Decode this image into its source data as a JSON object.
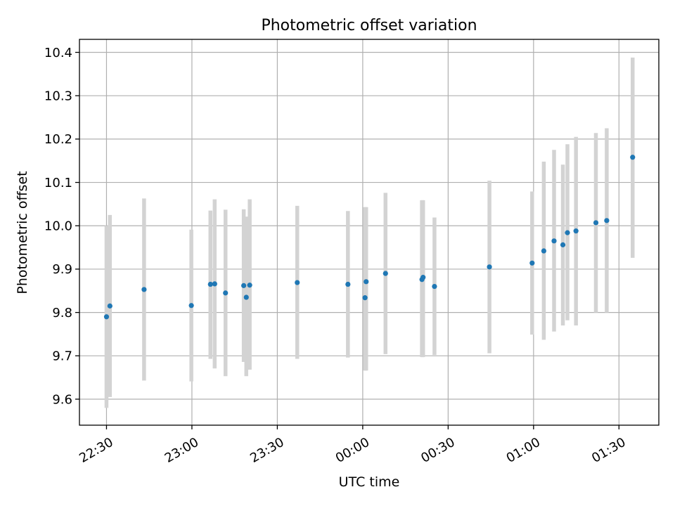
{
  "chart_data": {
    "type": "scatter",
    "title": "Photometric offset variation",
    "xlabel": "UTC time",
    "ylabel": "Photometric offset",
    "x_unit": "minutes",
    "x_axis_origin": "22:30",
    "xlim": [
      -9.5,
      194
    ],
    "ylim": [
      9.54,
      10.43
    ],
    "grid": true,
    "colors": {
      "points": "#1f77b4",
      "errorbars": "#d3d3d3"
    },
    "x_ticks": [
      {
        "value": 0,
        "label": "22:30"
      },
      {
        "value": 30,
        "label": "23:00"
      },
      {
        "value": 60,
        "label": "23:30"
      },
      {
        "value": 90,
        "label": "00:00"
      },
      {
        "value": 120,
        "label": "00:30"
      },
      {
        "value": 150,
        "label": "01:00"
      },
      {
        "value": 180,
        "label": "01:30"
      }
    ],
    "y_ticks": [
      {
        "value": 9.6,
        "label": "9.6"
      },
      {
        "value": 9.7,
        "label": "9.7"
      },
      {
        "value": 9.8,
        "label": "9.8"
      },
      {
        "value": 9.9,
        "label": "9.9"
      },
      {
        "value": 10.0,
        "label": "10.0"
      },
      {
        "value": 10.1,
        "label": "10.1"
      },
      {
        "value": 10.2,
        "label": "10.2"
      },
      {
        "value": 10.3,
        "label": "10.3"
      },
      {
        "value": 10.4,
        "label": "10.4"
      }
    ],
    "series": [
      {
        "points": [
          {
            "x": 0.0,
            "y": 9.79,
            "ylow": 9.58,
            "yhigh": 10.0
          },
          {
            "x": 1.2,
            "y": 9.815,
            "ylow": 9.605,
            "yhigh": 10.025
          },
          {
            "x": 13.2,
            "y": 9.853,
            "ylow": 9.643,
            "yhigh": 10.063
          },
          {
            "x": 29.8,
            "y": 9.816,
            "ylow": 9.641,
            "yhigh": 9.991
          },
          {
            "x": 36.5,
            "y": 9.865,
            "ylow": 9.693,
            "yhigh": 10.035
          },
          {
            "x": 38.0,
            "y": 9.866,
            "ylow": 9.671,
            "yhigh": 10.061
          },
          {
            "x": 41.8,
            "y": 9.845,
            "ylow": 9.653,
            "yhigh": 10.037
          },
          {
            "x": 48.2,
            "y": 9.862,
            "ylow": 9.686,
            "yhigh": 10.038
          },
          {
            "x": 49.1,
            "y": 9.835,
            "ylow": 9.653,
            "yhigh": 10.021
          },
          {
            "x": 50.3,
            "y": 9.863,
            "ylow": 9.668,
            "yhigh": 10.061
          },
          {
            "x": 67.0,
            "y": 9.869,
            "ylow": 9.693,
            "yhigh": 10.046
          },
          {
            "x": 84.8,
            "y": 9.865,
            "ylow": 9.696,
            "yhigh": 10.034
          },
          {
            "x": 90.8,
            "y": 9.834,
            "ylow": 9.666,
            "yhigh": 10.043
          },
          {
            "x": 91.2,
            "y": 9.871,
            "ylow": 9.666,
            "yhigh": 10.043
          },
          {
            "x": 98.0,
            "y": 9.89,
            "ylow": 9.704,
            "yhigh": 10.076
          },
          {
            "x": 110.8,
            "y": 9.876,
            "ylow": 9.697,
            "yhigh": 10.059
          },
          {
            "x": 111.2,
            "y": 9.881,
            "ylow": 9.697,
            "yhigh": 10.059
          },
          {
            "x": 115.2,
            "y": 9.86,
            "ylow": 9.702,
            "yhigh": 10.019
          },
          {
            "x": 134.5,
            "y": 9.905,
            "ylow": 9.706,
            "yhigh": 10.104
          },
          {
            "x": 149.5,
            "y": 9.914,
            "ylow": 9.749,
            "yhigh": 10.079
          },
          {
            "x": 153.6,
            "y": 9.942,
            "ylow": 9.737,
            "yhigh": 10.148
          },
          {
            "x": 157.2,
            "y": 9.965,
            "ylow": 9.756,
            "yhigh": 10.175
          },
          {
            "x": 160.3,
            "y": 9.956,
            "ylow": 9.77,
            "yhigh": 10.141
          },
          {
            "x": 161.9,
            "y": 9.984,
            "ylow": 9.782,
            "yhigh": 10.188
          },
          {
            "x": 164.9,
            "y": 9.988,
            "ylow": 9.77,
            "yhigh": 10.205
          },
          {
            "x": 171.9,
            "y": 10.007,
            "ylow": 9.8,
            "yhigh": 10.214
          },
          {
            "x": 175.7,
            "y": 10.012,
            "ylow": 9.8,
            "yhigh": 10.225
          },
          {
            "x": 184.8,
            "y": 10.158,
            "ylow": 9.926,
            "yhigh": 10.388
          }
        ]
      }
    ]
  }
}
